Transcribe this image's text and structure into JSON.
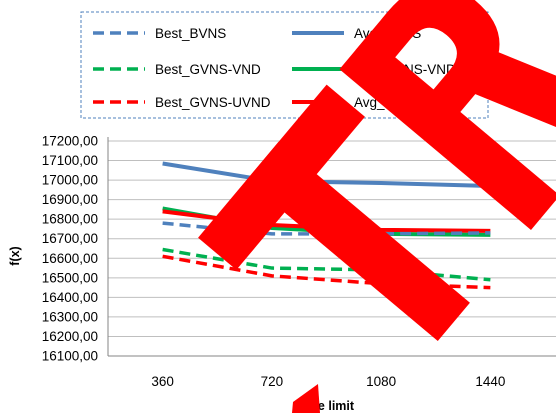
{
  "chart_data": {
    "type": "line",
    "title": "",
    "xlabel": "Time limit",
    "ylabel": "f(x)",
    "categories": [
      "360",
      "720",
      "1080",
      "1440"
    ],
    "y_tick_labels": [
      "16100,00",
      "16200,00",
      "16300,00",
      "16400,00",
      "16500,00",
      "16600,00",
      "16700,00",
      "16800,00",
      "16900,00",
      "17000,00",
      "17100,00",
      "17200,00"
    ],
    "ylim": [
      16100,
      17200
    ],
    "grid": true,
    "legend_position": "top",
    "series": [
      {
        "name": "Best_BVNS",
        "values": [
          16780,
          16725,
          16725,
          16730
        ],
        "color": "#4f81bd",
        "dash": true
      },
      {
        "name": "Avg_BVNS",
        "values": [
          17085,
          16995,
          16985,
          16970
        ],
        "color": "#4f81bd",
        "dash": false
      },
      {
        "name": "Best_GVNS-VND",
        "values": [
          16645,
          16550,
          16540,
          16490
        ],
        "color": "#00b050",
        "dash": true
      },
      {
        "name": "Avg_GVNS-VND",
        "values": [
          16855,
          16755,
          16725,
          16720
        ],
        "color": "#00b050",
        "dash": false
      },
      {
        "name": "Best_GVNS-UVND",
        "values": [
          16610,
          16510,
          16470,
          16450
        ],
        "color": "#ff0000",
        "dash": true
      },
      {
        "name": "Avg_GVNS-UVND",
        "values": [
          16840,
          16770,
          16745,
          16740
        ],
        "color": "#ff0000",
        "dash": false
      }
    ]
  },
  "overlay": {
    "color": "#ff0000",
    "text": "TR"
  }
}
